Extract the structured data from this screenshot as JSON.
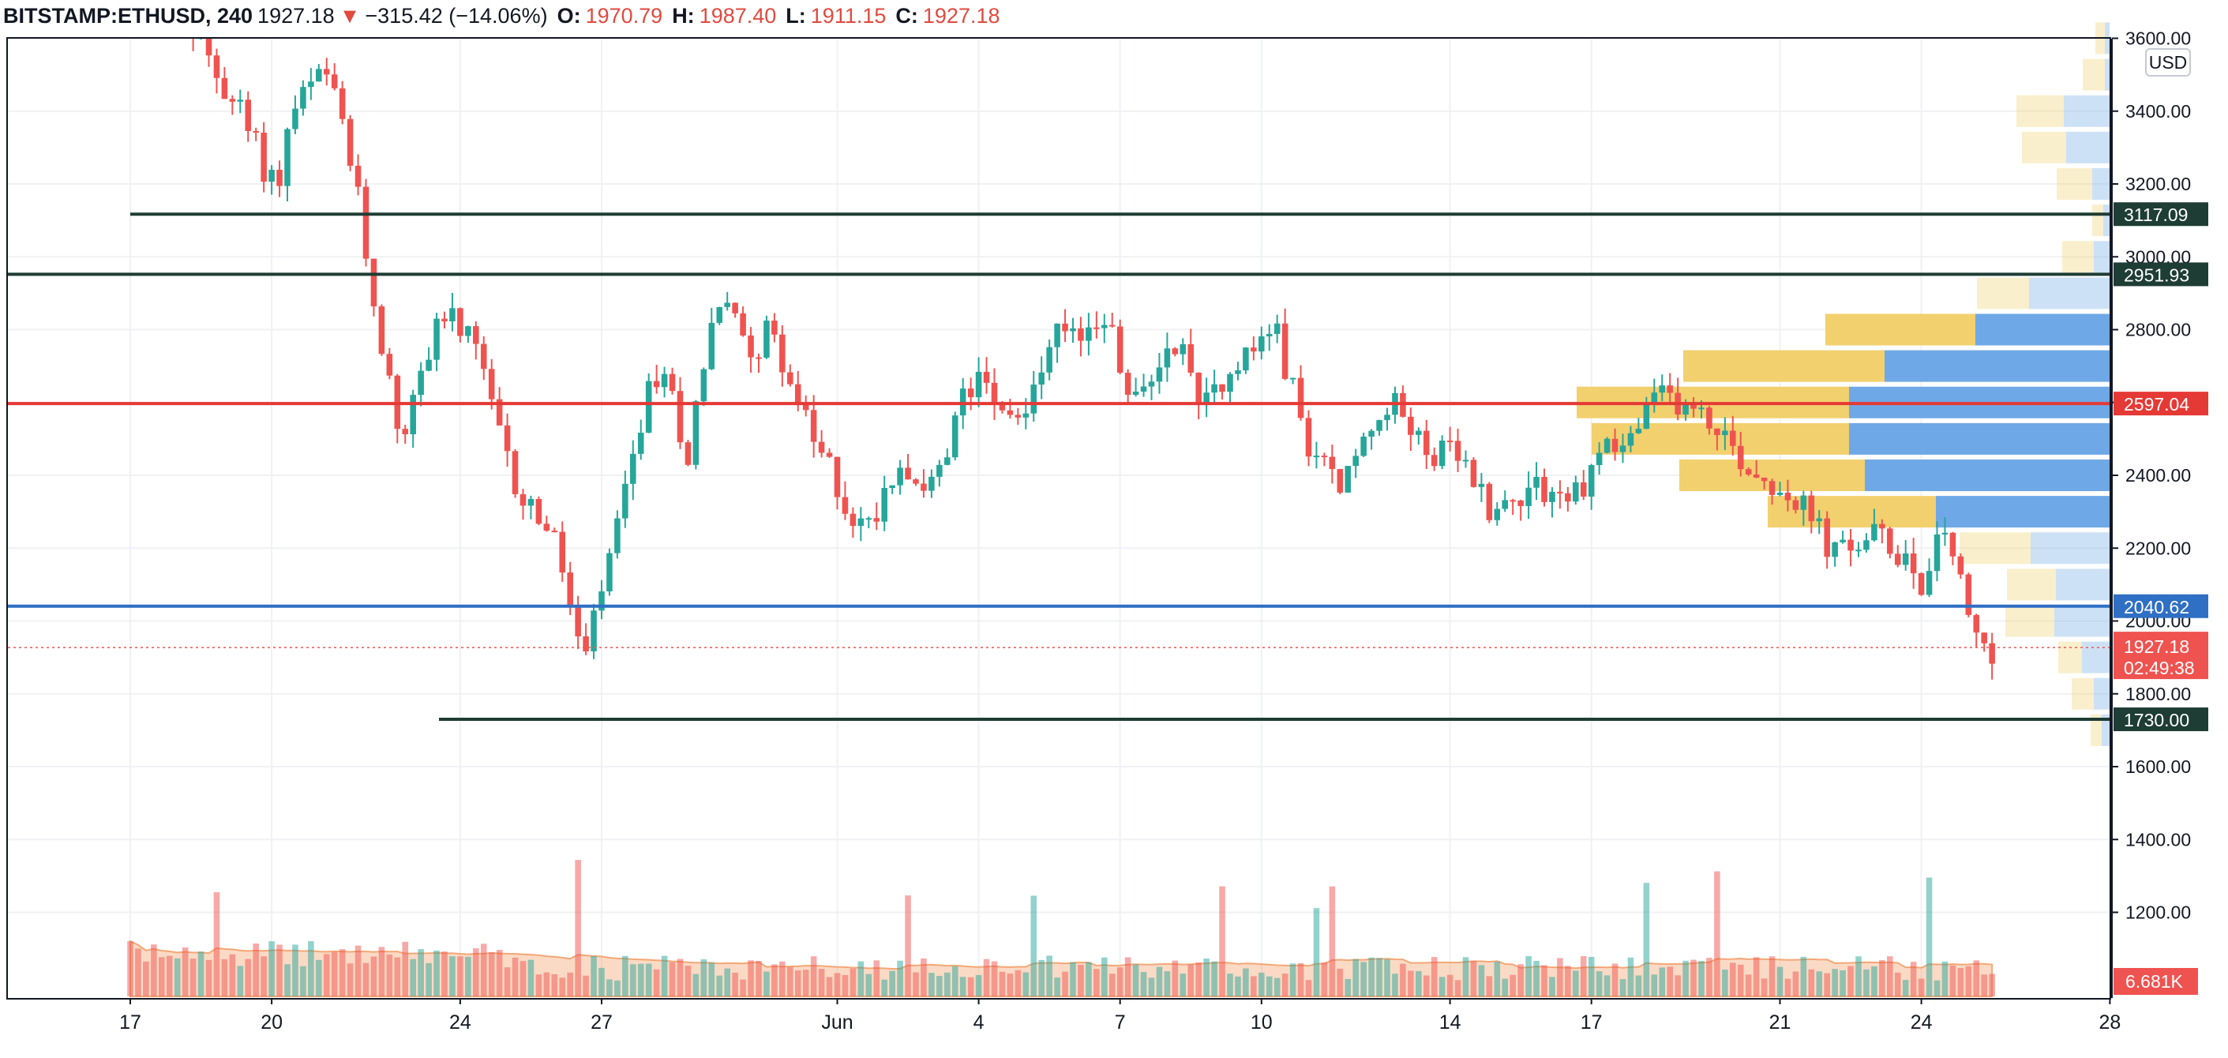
{
  "header": {
    "symbol": "BITSTAMP:ETHUSD, 240",
    "last": "1927.18",
    "arrow": "▼",
    "change": "−315.42 (−14.06%)",
    "o_label": "O:",
    "o": "1970.79",
    "h_label": "H:",
    "h": "1987.40",
    "l_label": "L:",
    "l": "1911.15",
    "c_label": "C:",
    "c": "1927.18"
  },
  "currency": "USD",
  "colors": {
    "up": "#26a69a",
    "down": "#ef5350",
    "support_line": "#1e3d34",
    "red_line": "#e53935",
    "blue_line": "#2f6fc4",
    "profile_up": "#6fa8e6",
    "profile_down": "#f2d06e"
  },
  "chart_data": {
    "type": "candlestick",
    "timeframe": "240",
    "x_ticks": [
      "17",
      "20",
      "24",
      "27",
      "Jun",
      "4",
      "7",
      "10",
      "14",
      "17",
      "21",
      "24",
      "28"
    ],
    "y_ticks": [
      "3600.00",
      "3400.00",
      "3200.00",
      "3000.00",
      "2800.00",
      "2600.00",
      "2400.00",
      "2200.00",
      "2000.00",
      "1800.00",
      "1600.00",
      "1400.00",
      "1200.00"
    ],
    "ylim": [
      1090,
      3730
    ],
    "last_price": {
      "value": "1927.18",
      "countdown": "02:49:38"
    },
    "volume_label": "6.681K",
    "horizontal_levels": [
      {
        "label": "3117.09",
        "value": 3117.09,
        "color": "#1e3d34"
      },
      {
        "label": "2951.93",
        "value": 2951.93,
        "color": "#1e3d34"
      },
      {
        "label": "2597.04",
        "value": 2597.04,
        "color": "#e53935"
      },
      {
        "label": "2040.62",
        "value": 2040.62,
        "color": "#2f6fc4"
      },
      {
        "label": "1730.00",
        "value": 1730.0,
        "color": "#1e3d34"
      }
    ],
    "price_path": [
      {
        "d": 0,
        "p": 3900
      },
      {
        "d": 1.3,
        "p": 3650
      },
      {
        "d": 2.0,
        "p": 3500
      },
      {
        "d": 2.5,
        "p": 3400
      },
      {
        "d": 3.0,
        "p": 3250
      },
      {
        "d": 3.3,
        "p": 3200
      },
      {
        "d": 3.6,
        "p": 3400
      },
      {
        "d": 3.9,
        "p": 3450
      },
      {
        "d": 4.3,
        "p": 3500
      },
      {
        "d": 4.7,
        "p": 3350
      },
      {
        "d": 5.0,
        "p": 3150
      },
      {
        "d": 5.3,
        "p": 2900
      },
      {
        "d": 5.6,
        "p": 2700
      },
      {
        "d": 5.9,
        "p": 2500
      },
      {
        "d": 6.3,
        "p": 2650
      },
      {
        "d": 6.7,
        "p": 2850
      },
      {
        "d": 7.2,
        "p": 2800
      },
      {
        "d": 7.6,
        "p": 2700
      },
      {
        "d": 8.0,
        "p": 2500
      },
      {
        "d": 8.4,
        "p": 2350
      },
      {
        "d": 8.8,
        "p": 2300
      },
      {
        "d": 9.2,
        "p": 2200
      },
      {
        "d": 9.5,
        "p": 2050
      },
      {
        "d": 9.8,
        "p": 1870
      },
      {
        "d": 10.1,
        "p": 2050
      },
      {
        "d": 10.4,
        "p": 2200
      },
      {
        "d": 10.7,
        "p": 2350
      },
      {
        "d": 11.0,
        "p": 2550
      },
      {
        "d": 11.3,
        "p": 2680
      },
      {
        "d": 11.7,
        "p": 2600
      },
      {
        "d": 12.0,
        "p": 2450
      },
      {
        "d": 12.3,
        "p": 2700
      },
      {
        "d": 12.6,
        "p": 2880
      },
      {
        "d": 13.0,
        "p": 2820
      },
      {
        "d": 13.4,
        "p": 2750
      },
      {
        "d": 13.8,
        "p": 2800
      },
      {
        "d": 14.2,
        "p": 2650
      },
      {
        "d": 14.6,
        "p": 2500
      },
      {
        "d": 15.0,
        "p": 2420
      },
      {
        "d": 15.4,
        "p": 2300
      },
      {
        "d": 15.8,
        "p": 2250
      },
      {
        "d": 16.2,
        "p": 2380
      },
      {
        "d": 16.6,
        "p": 2450
      },
      {
        "d": 17.0,
        "p": 2350
      },
      {
        "d": 17.4,
        "p": 2400
      },
      {
        "d": 17.8,
        "p": 2600
      },
      {
        "d": 18.2,
        "p": 2700
      },
      {
        "d": 18.6,
        "p": 2620
      },
      {
        "d": 19.0,
        "p": 2550
      },
      {
        "d": 19.4,
        "p": 2650
      },
      {
        "d": 19.8,
        "p": 2780
      },
      {
        "d": 20.2,
        "p": 2760
      },
      {
        "d": 20.6,
        "p": 2830
      },
      {
        "d": 20.9,
        "p": 2850
      },
      {
        "d": 21.2,
        "p": 2650
      },
      {
        "d": 21.6,
        "p": 2600
      },
      {
        "d": 22.0,
        "p": 2720
      },
      {
        "d": 22.4,
        "p": 2780
      },
      {
        "d": 22.8,
        "p": 2620
      },
      {
        "d": 23.2,
        "p": 2650
      },
      {
        "d": 23.6,
        "p": 2720
      },
      {
        "d": 24.0,
        "p": 2740
      },
      {
        "d": 24.4,
        "p": 2820
      },
      {
        "d": 24.8,
        "p": 2650
      },
      {
        "d": 25.1,
        "p": 2500
      },
      {
        "d": 25.5,
        "p": 2420
      },
      {
        "d": 25.9,
        "p": 2380
      },
      {
        "d": 26.3,
        "p": 2480
      },
      {
        "d": 26.7,
        "p": 2600
      },
      {
        "d": 27.1,
        "p": 2580
      },
      {
        "d": 27.5,
        "p": 2500
      },
      {
        "d": 27.9,
        "p": 2460
      },
      {
        "d": 28.3,
        "p": 2450
      },
      {
        "d": 28.7,
        "p": 2380
      },
      {
        "d": 29.1,
        "p": 2300
      },
      {
        "d": 29.5,
        "p": 2330
      },
      {
        "d": 29.9,
        "p": 2400
      },
      {
        "d": 30.3,
        "p": 2350
      },
      {
        "d": 30.7,
        "p": 2330
      },
      {
        "d": 31.1,
        "p": 2400
      },
      {
        "d": 31.5,
        "p": 2500
      },
      {
        "d": 31.9,
        "p": 2480
      },
      {
        "d": 32.3,
        "p": 2560
      },
      {
        "d": 32.7,
        "p": 2620
      },
      {
        "d": 33.1,
        "p": 2600
      },
      {
        "d": 33.5,
        "p": 2560
      },
      {
        "d": 33.9,
        "p": 2530
      },
      {
        "d": 34.3,
        "p": 2450
      },
      {
        "d": 34.7,
        "p": 2400
      },
      {
        "d": 35.1,
        "p": 2380
      },
      {
        "d": 35.5,
        "p": 2330
      },
      {
        "d": 35.9,
        "p": 2270
      },
      {
        "d": 36.3,
        "p": 2180
      },
      {
        "d": 36.7,
        "p": 2200
      },
      {
        "d": 37.1,
        "p": 2240
      },
      {
        "d": 37.5,
        "p": 2200
      },
      {
        "d": 37.9,
        "p": 2180
      },
      {
        "d": 38.2,
        "p": 2100
      },
      {
        "d": 38.5,
        "p": 2200
      },
      {
        "d": 38.7,
        "p": 2260
      },
      {
        "d": 38.9,
        "p": 2160
      },
      {
        "d": 39.1,
        "p": 2020
      },
      {
        "d": 39.3,
        "p": 1960
      },
      {
        "d": 39.5,
        "p": 1927
      }
    ],
    "volume_profile": [
      {
        "price": 3600,
        "buy": 12,
        "sell": 6
      },
      {
        "price": 3500,
        "buy": 28,
        "sell": 6
      },
      {
        "price": 3400,
        "buy": 60,
        "sell": 58
      },
      {
        "price": 3300,
        "buy": 56,
        "sell": 55
      },
      {
        "price": 3200,
        "buy": 45,
        "sell": 22
      },
      {
        "price": 3100,
        "buy": 14,
        "sell": 8
      },
      {
        "price": 3000,
        "buy": 40,
        "sell": 20
      },
      {
        "price": 2900,
        "buy": 66,
        "sell": 102
      },
      {
        "price": 2800,
        "buy": 190,
        "sell": 170
      },
      {
        "price": 2700,
        "buy": 255,
        "sell": 285
      },
      {
        "price": 2600,
        "buy": 345,
        "sell": 330
      },
      {
        "price": 2500,
        "buy": 326,
        "sell": 330
      },
      {
        "price": 2400,
        "buy": 235,
        "sell": 310
      },
      {
        "price": 2300,
        "buy": 213,
        "sell": 220
      },
      {
        "price": 2200,
        "buy": 90,
        "sell": 100
      },
      {
        "price": 2100,
        "buy": 62,
        "sell": 68
      },
      {
        "price": 2000,
        "buy": 62,
        "sell": 70
      },
      {
        "price": 1900,
        "buy": 30,
        "sell": 35
      },
      {
        "price": 1800,
        "buy": 28,
        "sell": 20
      },
      {
        "price": 1700,
        "buy": 14,
        "sell": 10
      }
    ]
  }
}
